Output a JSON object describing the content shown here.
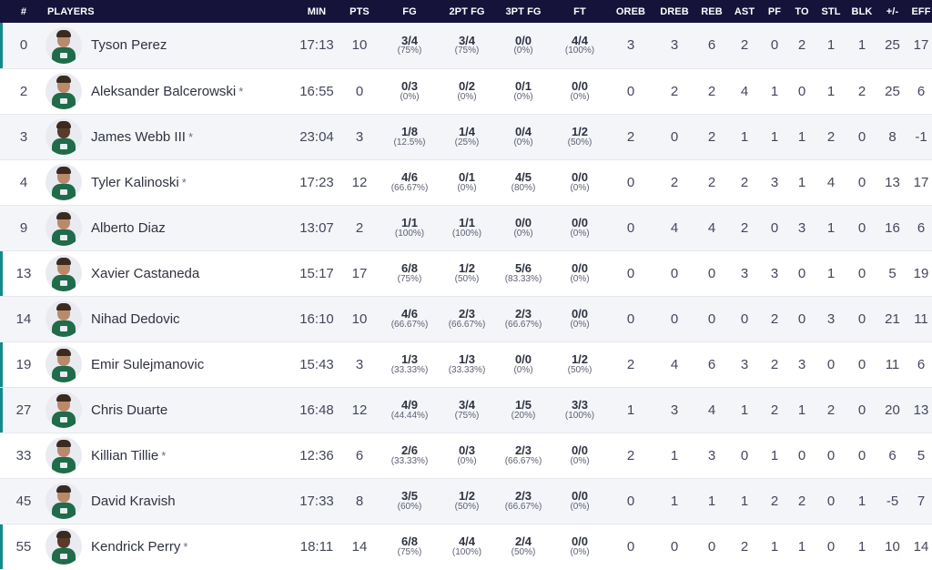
{
  "header": {
    "num": "#",
    "players": "PLAYERS",
    "min": "MIN",
    "pts": "PTS",
    "fg": "FG",
    "fg2": "2PT FG",
    "fg3": "3PT FG",
    "ft": "FT",
    "oreb": "OREB",
    "dreb": "DREB",
    "reb": "REB",
    "ast": "AST",
    "pf": "PF",
    "to": "TO",
    "stl": "STL",
    "blk": "BLK",
    "pm": "+/-",
    "eff": "EFF"
  },
  "colors": {
    "header_bg": "#15133a",
    "starter_bar": "#138a8c",
    "row_alt": "#f4f5f9"
  },
  "players": [
    {
      "num": "0",
      "name": "Tyson Perez",
      "star": "",
      "min": "17:13",
      "pts": "10",
      "fg": "3/4",
      "fg_pct": "(75%)",
      "fg2": "3/4",
      "fg2_pct": "(75%)",
      "fg3": "0/0",
      "fg3_pct": "(0%)",
      "ft": "4/4",
      "ft_pct": "(100%)",
      "oreb": "3",
      "dreb": "3",
      "reb": "6",
      "ast": "2",
      "pf": "0",
      "to": "2",
      "stl": "1",
      "blk": "1",
      "pm": "25",
      "eff": "17",
      "starter": true
    },
    {
      "num": "2",
      "name": "Aleksander Balcerowski",
      "star": "*",
      "min": "16:55",
      "pts": "0",
      "fg": "0/3",
      "fg_pct": "(0%)",
      "fg2": "0/2",
      "fg2_pct": "(0%)",
      "fg3": "0/1",
      "fg3_pct": "(0%)",
      "ft": "0/0",
      "ft_pct": "(0%)",
      "oreb": "0",
      "dreb": "2",
      "reb": "2",
      "ast": "4",
      "pf": "1",
      "to": "0",
      "stl": "1",
      "blk": "2",
      "pm": "25",
      "eff": "6",
      "starter": false
    },
    {
      "num": "3",
      "name": "James Webb III",
      "star": "*",
      "min": "23:04",
      "pts": "3",
      "fg": "1/8",
      "fg_pct": "(12.5%)",
      "fg2": "1/4",
      "fg2_pct": "(25%)",
      "fg3": "0/4",
      "fg3_pct": "(0%)",
      "ft": "1/2",
      "ft_pct": "(50%)",
      "oreb": "2",
      "dreb": "0",
      "reb": "2",
      "ast": "1",
      "pf": "1",
      "to": "1",
      "stl": "2",
      "blk": "0",
      "pm": "8",
      "eff": "-1",
      "starter": false
    },
    {
      "num": "4",
      "name": "Tyler Kalinoski",
      "star": "*",
      "min": "17:23",
      "pts": "12",
      "fg": "4/6",
      "fg_pct": "(66.67%)",
      "fg2": "0/1",
      "fg2_pct": "(0%)",
      "fg3": "4/5",
      "fg3_pct": "(80%)",
      "ft": "0/0",
      "ft_pct": "(0%)",
      "oreb": "0",
      "dreb": "2",
      "reb": "2",
      "ast": "2",
      "pf": "3",
      "to": "1",
      "stl": "4",
      "blk": "0",
      "pm": "13",
      "eff": "17",
      "starter": false
    },
    {
      "num": "9",
      "name": "Alberto Diaz",
      "star": "",
      "min": "13:07",
      "pts": "2",
      "fg": "1/1",
      "fg_pct": "(100%)",
      "fg2": "1/1",
      "fg2_pct": "(100%)",
      "fg3": "0/0",
      "fg3_pct": "(0%)",
      "ft": "0/0",
      "ft_pct": "(0%)",
      "oreb": "0",
      "dreb": "4",
      "reb": "4",
      "ast": "2",
      "pf": "0",
      "to": "3",
      "stl": "1",
      "blk": "0",
      "pm": "16",
      "eff": "6",
      "starter": false
    },
    {
      "num": "13",
      "name": "Xavier Castaneda",
      "star": "",
      "min": "15:17",
      "pts": "17",
      "fg": "6/8",
      "fg_pct": "(75%)",
      "fg2": "1/2",
      "fg2_pct": "(50%)",
      "fg3": "5/6",
      "fg3_pct": "(83.33%)",
      "ft": "0/0",
      "ft_pct": "(0%)",
      "oreb": "0",
      "dreb": "0",
      "reb": "0",
      "ast": "3",
      "pf": "3",
      "to": "0",
      "stl": "1",
      "blk": "0",
      "pm": "5",
      "eff": "19",
      "starter": true
    },
    {
      "num": "14",
      "name": "Nihad Dedovic",
      "star": "",
      "min": "16:10",
      "pts": "10",
      "fg": "4/6",
      "fg_pct": "(66.67%)",
      "fg2": "2/3",
      "fg2_pct": "(66.67%)",
      "fg3": "2/3",
      "fg3_pct": "(66.67%)",
      "ft": "0/0",
      "ft_pct": "(0%)",
      "oreb": "0",
      "dreb": "0",
      "reb": "0",
      "ast": "0",
      "pf": "2",
      "to": "0",
      "stl": "3",
      "blk": "0",
      "pm": "21",
      "eff": "11",
      "starter": false
    },
    {
      "num": "19",
      "name": "Emir Sulejmanovic",
      "star": "",
      "min": "15:43",
      "pts": "3",
      "fg": "1/3",
      "fg_pct": "(33.33%)",
      "fg2": "1/3",
      "fg2_pct": "(33.33%)",
      "fg3": "0/0",
      "fg3_pct": "(0%)",
      "ft": "1/2",
      "ft_pct": "(50%)",
      "oreb": "2",
      "dreb": "4",
      "reb": "6",
      "ast": "3",
      "pf": "2",
      "to": "3",
      "stl": "0",
      "blk": "0",
      "pm": "11",
      "eff": "6",
      "starter": true
    },
    {
      "num": "27",
      "name": "Chris Duarte",
      "star": "",
      "min": "16:48",
      "pts": "12",
      "fg": "4/9",
      "fg_pct": "(44.44%)",
      "fg2": "3/4",
      "fg2_pct": "(75%)",
      "fg3": "1/5",
      "fg3_pct": "(20%)",
      "ft": "3/3",
      "ft_pct": "(100%)",
      "oreb": "1",
      "dreb": "3",
      "reb": "4",
      "ast": "1",
      "pf": "2",
      "to": "1",
      "stl": "2",
      "blk": "0",
      "pm": "20",
      "eff": "13",
      "starter": true
    },
    {
      "num": "33",
      "name": "Killian Tillie",
      "star": "*",
      "min": "12:36",
      "pts": "6",
      "fg": "2/6",
      "fg_pct": "(33.33%)",
      "fg2": "0/3",
      "fg2_pct": "(0%)",
      "fg3": "2/3",
      "fg3_pct": "(66.67%)",
      "ft": "0/0",
      "ft_pct": "(0%)",
      "oreb": "2",
      "dreb": "1",
      "reb": "3",
      "ast": "0",
      "pf": "1",
      "to": "0",
      "stl": "0",
      "blk": "0",
      "pm": "6",
      "eff": "5",
      "starter": false
    },
    {
      "num": "45",
      "name": "David Kravish",
      "star": "",
      "min": "17:33",
      "pts": "8",
      "fg": "3/5",
      "fg_pct": "(60%)",
      "fg2": "1/2",
      "fg2_pct": "(50%)",
      "fg3": "2/3",
      "fg3_pct": "(66.67%)",
      "ft": "0/0",
      "ft_pct": "(0%)",
      "oreb": "0",
      "dreb": "1",
      "reb": "1",
      "ast": "1",
      "pf": "2",
      "to": "2",
      "stl": "0",
      "blk": "1",
      "pm": "-5",
      "eff": "7",
      "starter": false
    },
    {
      "num": "55",
      "name": "Kendrick Perry",
      "star": "*",
      "min": "18:11",
      "pts": "14",
      "fg": "6/8",
      "fg_pct": "(75%)",
      "fg2": "4/4",
      "fg2_pct": "(100%)",
      "fg3": "2/4",
      "fg3_pct": "(50%)",
      "ft": "0/0",
      "ft_pct": "(0%)",
      "oreb": "0",
      "dreb": "0",
      "reb": "0",
      "ast": "2",
      "pf": "1",
      "to": "1",
      "stl": "0",
      "blk": "1",
      "pm": "10",
      "eff": "14",
      "starter": true
    }
  ]
}
